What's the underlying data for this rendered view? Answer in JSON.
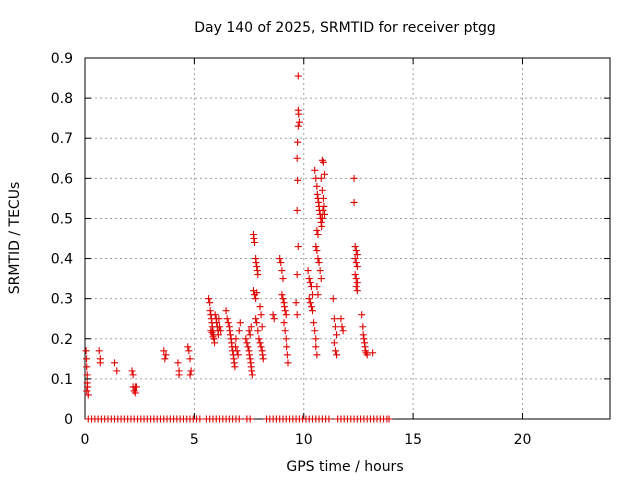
{
  "chart_data": {
    "type": "scatter",
    "title": "Day 140 of 2025, SRMTID for receiver ptgg",
    "xlabel": "GPS time / hours",
    "ylabel": "SRMTID / TECUs",
    "xlim": [
      0,
      24
    ],
    "ylim": [
      0,
      0.9
    ],
    "xticks": [
      0,
      5,
      10,
      15,
      20
    ],
    "yticks": [
      0,
      0.1,
      0.2,
      0.3,
      0.4,
      0.5,
      0.6,
      0.7,
      0.8,
      0.9
    ],
    "xtick_labels": [
      "0",
      "5",
      "10",
      "15",
      "20"
    ],
    "ytick_labels": [
      "0",
      "0.1",
      "0.2",
      "0.3",
      "0.4",
      "0.5",
      "0.6",
      "0.7",
      "0.8",
      "0.9"
    ],
    "grid": true,
    "marker": "plus",
    "series": [
      {
        "name": "SRMTID",
        "color": "#e00000",
        "points": [
          [
            0.05,
            0.17
          ],
          [
            0.07,
            0.15
          ],
          [
            0.08,
            0.13
          ],
          [
            0.1,
            0.11
          ],
          [
            0.1,
            0.09
          ],
          [
            0.12,
            0.08
          ],
          [
            0.08,
            0.07
          ],
          [
            0.15,
            0.06
          ],
          [
            0.65,
            0.17
          ],
          [
            0.7,
            0.15
          ],
          [
            0.7,
            0.14
          ],
          [
            1.35,
            0.14
          ],
          [
            1.45,
            0.12
          ],
          [
            2.15,
            0.12
          ],
          [
            2.2,
            0.11
          ],
          [
            2.2,
            0.08
          ],
          [
            2.25,
            0.07
          ],
          [
            2.3,
            0.08
          ],
          [
            2.35,
            0.08
          ],
          [
            2.3,
            0.065
          ],
          [
            3.6,
            0.17
          ],
          [
            3.65,
            0.15
          ],
          [
            3.7,
            0.16
          ],
          [
            4.25,
            0.14
          ],
          [
            4.3,
            0.12
          ],
          [
            4.3,
            0.11
          ],
          [
            4.7,
            0.18
          ],
          [
            4.75,
            0.17
          ],
          [
            4.8,
            0.15
          ],
          [
            4.85,
            0.12
          ],
          [
            4.8,
            0.11
          ],
          [
            5.65,
            0.3
          ],
          [
            5.7,
            0.29
          ],
          [
            5.72,
            0.27
          ],
          [
            5.75,
            0.26
          ],
          [
            5.78,
            0.25
          ],
          [
            5.8,
            0.24
          ],
          [
            5.82,
            0.23
          ],
          [
            5.85,
            0.22
          ],
          [
            5.88,
            0.21
          ],
          [
            5.9,
            0.2
          ],
          [
            5.92,
            0.19
          ],
          [
            5.95,
            0.26
          ],
          [
            6.0,
            0.25
          ],
          [
            6.02,
            0.24
          ],
          [
            6.05,
            0.23
          ],
          [
            6.08,
            0.22
          ],
          [
            6.1,
            0.21
          ],
          [
            6.12,
            0.25
          ],
          [
            6.15,
            0.23
          ],
          [
            6.2,
            0.22
          ],
          [
            5.75,
            0.22
          ],
          [
            5.8,
            0.215
          ],
          [
            5.85,
            0.205
          ],
          [
            6.45,
            0.27
          ],
          [
            6.5,
            0.25
          ],
          [
            6.55,
            0.24
          ],
          [
            6.6,
            0.23
          ],
          [
            6.62,
            0.22
          ],
          [
            6.65,
            0.21
          ],
          [
            6.68,
            0.2
          ],
          [
            6.7,
            0.19
          ],
          [
            6.72,
            0.18
          ],
          [
            6.75,
            0.17
          ],
          [
            6.78,
            0.16
          ],
          [
            6.8,
            0.15
          ],
          [
            6.82,
            0.14
          ],
          [
            6.85,
            0.13
          ],
          [
            6.88,
            0.18
          ],
          [
            6.9,
            0.2
          ],
          [
            6.95,
            0.17
          ],
          [
            7.0,
            0.16
          ],
          [
            7.05,
            0.22
          ],
          [
            7.1,
            0.24
          ],
          [
            7.35,
            0.2
          ],
          [
            7.4,
            0.19
          ],
          [
            7.45,
            0.18
          ],
          [
            7.5,
            0.17
          ],
          [
            7.52,
            0.16
          ],
          [
            7.55,
            0.15
          ],
          [
            7.58,
            0.14
          ],
          [
            7.6,
            0.13
          ],
          [
            7.62,
            0.12
          ],
          [
            7.65,
            0.11
          ],
          [
            7.5,
            0.22
          ],
          [
            7.55,
            0.21
          ],
          [
            7.6,
            0.23
          ],
          [
            7.7,
            0.46
          ],
          [
            7.72,
            0.45
          ],
          [
            7.75,
            0.44
          ],
          [
            7.8,
            0.4
          ],
          [
            7.82,
            0.39
          ],
          [
            7.85,
            0.38
          ],
          [
            7.88,
            0.37
          ],
          [
            7.9,
            0.36
          ],
          [
            7.7,
            0.32
          ],
          [
            7.75,
            0.31
          ],
          [
            7.8,
            0.3
          ],
          [
            7.85,
            0.315
          ],
          [
            7.8,
            0.25
          ],
          [
            7.85,
            0.24
          ],
          [
            7.9,
            0.22
          ],
          [
            7.95,
            0.2
          ],
          [
            8.0,
            0.19
          ],
          [
            8.05,
            0.18
          ],
          [
            8.1,
            0.17
          ],
          [
            8.12,
            0.16
          ],
          [
            8.15,
            0.15
          ],
          [
            8.0,
            0.28
          ],
          [
            8.05,
            0.26
          ],
          [
            8.1,
            0.23
          ],
          [
            8.6,
            0.26
          ],
          [
            8.65,
            0.25
          ],
          [
            8.9,
            0.4
          ],
          [
            8.95,
            0.39
          ],
          [
            9.0,
            0.37
          ],
          [
            9.05,
            0.35
          ],
          [
            9.0,
            0.31
          ],
          [
            9.05,
            0.3
          ],
          [
            9.1,
            0.29
          ],
          [
            9.12,
            0.28
          ],
          [
            9.15,
            0.27
          ],
          [
            9.2,
            0.26
          ],
          [
            9.1,
            0.24
          ],
          [
            9.15,
            0.22
          ],
          [
            9.2,
            0.2
          ],
          [
            9.22,
            0.18
          ],
          [
            9.25,
            0.16
          ],
          [
            9.28,
            0.14
          ],
          [
            9.65,
            0.29
          ],
          [
            9.7,
            0.26
          ],
          [
            9.7,
            0.36
          ],
          [
            9.75,
            0.855
          ],
          [
            9.75,
            0.77
          ],
          [
            9.77,
            0.76
          ],
          [
            9.8,
            0.74
          ],
          [
            9.75,
            0.73
          ],
          [
            9.72,
            0.69
          ],
          [
            9.7,
            0.65
          ],
          [
            9.72,
            0.595
          ],
          [
            9.7,
            0.52
          ],
          [
            9.75,
            0.43
          ],
          [
            10.2,
            0.37
          ],
          [
            10.25,
            0.35
          ],
          [
            10.3,
            0.34
          ],
          [
            10.35,
            0.33
          ],
          [
            10.4,
            0.31
          ],
          [
            10.25,
            0.3
          ],
          [
            10.3,
            0.29
          ],
          [
            10.35,
            0.28
          ],
          [
            10.4,
            0.27
          ],
          [
            10.45,
            0.24
          ],
          [
            10.5,
            0.22
          ],
          [
            10.55,
            0.2
          ],
          [
            10.55,
            0.18
          ],
          [
            10.6,
            0.16
          ],
          [
            10.5,
            0.62
          ],
          [
            10.55,
            0.6
          ],
          [
            10.6,
            0.58
          ],
          [
            10.62,
            0.56
          ],
          [
            10.65,
            0.55
          ],
          [
            10.68,
            0.54
          ],
          [
            10.7,
            0.53
          ],
          [
            10.72,
            0.52
          ],
          [
            10.75,
            0.51
          ],
          [
            10.78,
            0.5
          ],
          [
            10.8,
            0.49
          ],
          [
            10.82,
            0.48
          ],
          [
            10.85,
            0.5
          ],
          [
            10.88,
            0.52
          ],
          [
            10.9,
            0.55
          ],
          [
            10.92,
            0.53
          ],
          [
            10.95,
            0.51
          ],
          [
            10.6,
            0.47
          ],
          [
            10.65,
            0.46
          ],
          [
            10.85,
            0.645
          ],
          [
            10.9,
            0.64
          ],
          [
            10.95,
            0.61
          ],
          [
            10.8,
            0.6
          ],
          [
            10.85,
            0.57
          ],
          [
            10.55,
            0.43
          ],
          [
            10.6,
            0.42
          ],
          [
            10.65,
            0.4
          ],
          [
            10.7,
            0.39
          ],
          [
            10.75,
            0.37
          ],
          [
            10.8,
            0.35
          ],
          [
            10.6,
            0.33
          ],
          [
            10.65,
            0.31
          ],
          [
            11.35,
            0.3
          ],
          [
            11.4,
            0.25
          ],
          [
            11.45,
            0.23
          ],
          [
            11.5,
            0.21
          ],
          [
            11.4,
            0.19
          ],
          [
            11.45,
            0.17
          ],
          [
            11.5,
            0.16
          ],
          [
            11.7,
            0.25
          ],
          [
            11.75,
            0.23
          ],
          [
            11.8,
            0.22
          ],
          [
            12.3,
            0.6
          ],
          [
            12.3,
            0.54
          ],
          [
            12.35,
            0.43
          ],
          [
            12.4,
            0.42
          ],
          [
            12.45,
            0.41
          ],
          [
            12.35,
            0.4
          ],
          [
            12.4,
            0.39
          ],
          [
            12.45,
            0.38
          ],
          [
            12.35,
            0.36
          ],
          [
            12.4,
            0.35
          ],
          [
            12.45,
            0.34
          ],
          [
            12.4,
            0.33
          ],
          [
            12.45,
            0.32
          ],
          [
            12.65,
            0.26
          ],
          [
            12.7,
            0.23
          ],
          [
            12.72,
            0.21
          ],
          [
            12.75,
            0.2
          ],
          [
            12.78,
            0.19
          ],
          [
            12.8,
            0.18
          ],
          [
            12.82,
            0.17
          ],
          [
            12.85,
            0.165
          ],
          [
            12.9,
            0.16
          ],
          [
            13.15,
            0.165
          ],
          [
            0.15,
            0.0
          ],
          [
            0.3,
            0.0
          ],
          [
            0.45,
            0.0
          ],
          [
            0.6,
            0.0
          ],
          [
            0.75,
            0.0
          ],
          [
            0.9,
            0.0
          ],
          [
            1.05,
            0.0
          ],
          [
            1.2,
            0.0
          ],
          [
            1.35,
            0.0
          ],
          [
            1.5,
            0.0
          ],
          [
            1.65,
            0.0
          ],
          [
            1.8,
            0.0
          ],
          [
            1.95,
            0.0
          ],
          [
            2.1,
            0.0
          ],
          [
            2.25,
            0.0
          ],
          [
            2.4,
            0.0
          ],
          [
            2.55,
            0.0
          ],
          [
            2.7,
            0.0
          ],
          [
            2.85,
            0.0
          ],
          [
            3.0,
            0.0
          ],
          [
            3.15,
            0.0
          ],
          [
            3.3,
            0.0
          ],
          [
            3.45,
            0.0
          ],
          [
            3.6,
            0.0
          ],
          [
            3.75,
            0.0
          ],
          [
            3.9,
            0.0
          ],
          [
            4.05,
            0.0
          ],
          [
            4.2,
            0.0
          ],
          [
            4.35,
            0.0
          ],
          [
            4.5,
            0.0
          ],
          [
            4.65,
            0.0
          ],
          [
            4.8,
            0.0
          ],
          [
            4.95,
            0.0
          ],
          [
            5.1,
            0.0
          ],
          [
            5.25,
            0.0
          ],
          [
            5.55,
            0.0
          ],
          [
            5.7,
            0.0
          ],
          [
            5.85,
            0.0
          ],
          [
            6.0,
            0.0
          ],
          [
            6.15,
            0.0
          ],
          [
            6.3,
            0.0
          ],
          [
            6.45,
            0.0
          ],
          [
            6.6,
            0.0
          ],
          [
            6.75,
            0.0
          ],
          [
            6.9,
            0.0
          ],
          [
            7.05,
            0.0
          ],
          [
            7.4,
            0.0
          ],
          [
            7.55,
            0.0
          ],
          [
            8.3,
            0.0
          ],
          [
            8.45,
            0.0
          ],
          [
            8.6,
            0.0
          ],
          [
            8.75,
            0.0
          ],
          [
            8.9,
            0.0
          ],
          [
            9.05,
            0.0
          ],
          [
            9.2,
            0.0
          ],
          [
            9.35,
            0.0
          ],
          [
            9.5,
            0.0
          ],
          [
            9.65,
            0.0
          ],
          [
            9.8,
            0.0
          ],
          [
            9.95,
            0.0
          ],
          [
            10.1,
            0.0
          ],
          [
            10.25,
            0.0
          ],
          [
            10.4,
            0.0
          ],
          [
            10.55,
            0.0
          ],
          [
            10.7,
            0.0
          ],
          [
            10.85,
            0.0
          ],
          [
            11.0,
            0.0
          ],
          [
            11.15,
            0.0
          ],
          [
            11.55,
            0.0
          ],
          [
            11.7,
            0.0
          ],
          [
            11.85,
            0.0
          ],
          [
            12.0,
            0.0
          ],
          [
            12.15,
            0.0
          ],
          [
            12.3,
            0.0
          ],
          [
            12.45,
            0.0
          ],
          [
            12.6,
            0.0
          ],
          [
            12.75,
            0.0
          ],
          [
            12.9,
            0.0
          ],
          [
            13.05,
            0.0
          ],
          [
            13.2,
            0.0
          ],
          [
            13.35,
            0.0
          ],
          [
            13.5,
            0.0
          ],
          [
            13.65,
            0.0
          ],
          [
            13.8,
            0.0
          ],
          [
            13.9,
            0.0
          ]
        ]
      }
    ]
  }
}
